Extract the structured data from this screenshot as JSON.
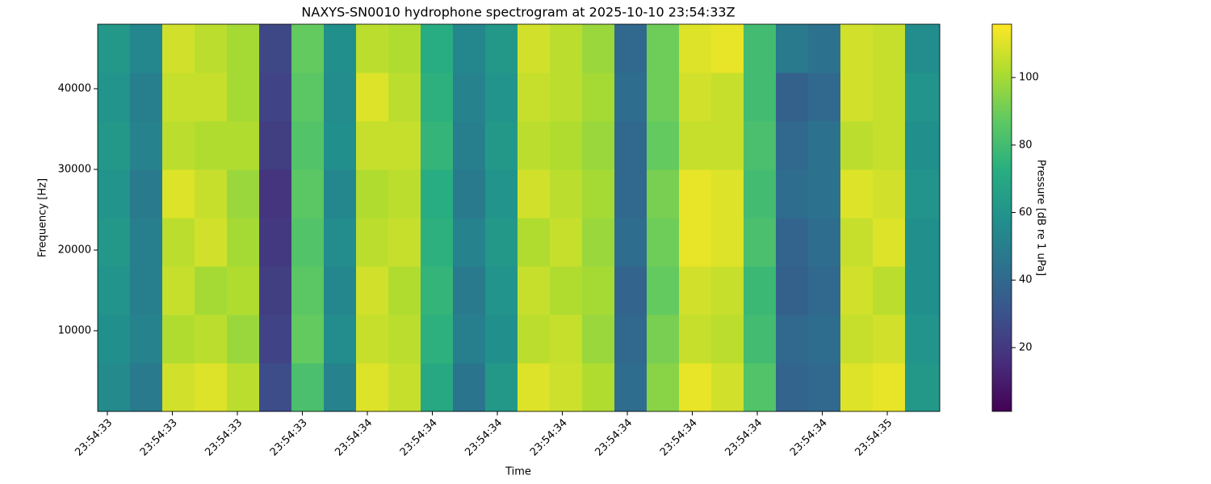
{
  "chart_data": {
    "type": "heatmap",
    "title": "NAXYS-SN0010 hydrophone spectrogram at 2025-10-10 23:54:33Z",
    "xlabel": "Time",
    "ylabel": "Frequency [Hz]",
    "colorbar_label": "Pressure [dB re 1 uPa]",
    "colormap": "viridis",
    "x": [
      33.5314,
      33.5935,
      33.6556,
      33.7177,
      33.7798,
      33.842,
      33.9041,
      33.9662,
      34.0283,
      34.0904,
      34.1525,
      34.2146,
      34.2767,
      34.3388,
      34.4009,
      34.4631,
      34.5252,
      34.5873,
      34.6494,
      34.7115,
      34.7736,
      34.8357,
      34.8978,
      34.9599,
      35.022,
      35.0841,
      35.1509
    ],
    "y": [
      0,
      6000,
      12000,
      18000,
      24000,
      30000,
      36000,
      42000,
      48000
    ],
    "values": [
      [
        55,
        48,
        108,
        110,
        104,
        28,
        82,
        52,
        110,
        106,
        70,
        45,
        62,
        110,
        107,
        102,
        42,
        95,
        112,
        108,
        84,
        38,
        40,
        110,
        112,
        62
      ],
      [
        58,
        52,
        102,
        104,
        98,
        24,
        88,
        56,
        106,
        104,
        74,
        50,
        58,
        104,
        106,
        98,
        40,
        92,
        106,
        104,
        80,
        40,
        42,
        106,
        108,
        60
      ],
      [
        60,
        50,
        106,
        100,
        102,
        22,
        86,
        54,
        108,
        102,
        76,
        48,
        60,
        106,
        102,
        100,
        38,
        88,
        108,
        106,
        78,
        36,
        40,
        108,
        104,
        58
      ],
      [
        62,
        50,
        104,
        108,
        100,
        20,
        84,
        56,
        104,
        106,
        74,
        52,
        62,
        102,
        106,
        98,
        42,
        90,
        112,
        110,
        82,
        38,
        42,
        106,
        110,
        58
      ],
      [
        60,
        48,
        110,
        106,
        98,
        18,
        86,
        54,
        102,
        104,
        72,
        48,
        60,
        108,
        104,
        100,
        40,
        92,
        112,
        110,
        80,
        42,
        44,
        110,
        108,
        60
      ],
      [
        62,
        52,
        104,
        102,
        102,
        22,
        84,
        58,
        106,
        106,
        76,
        50,
        62,
        104,
        102,
        98,
        40,
        88,
        106,
        106,
        82,
        40,
        44,
        104,
        106,
        58
      ],
      [
        60,
        50,
        106,
        106,
        100,
        24,
        86,
        56,
        110,
        104,
        74,
        52,
        60,
        106,
        104,
        100,
        42,
        90,
        108,
        106,
        80,
        36,
        40,
        108,
        106,
        60
      ],
      [
        62,
        54,
        108,
        104,
        100,
        26,
        88,
        58,
        104,
        102,
        72,
        54,
        62,
        108,
        104,
        98,
        40,
        90,
        110,
        112,
        80,
        48,
        44,
        108,
        106,
        56
      ]
    ],
    "xlim": [
      33.5314,
      35.1509
    ],
    "ylim": [
      0,
      48000
    ],
    "xticks": [
      {
        "value": 33.55,
        "label": "23:54:33"
      },
      {
        "value": 33.675,
        "label": "23:54:33"
      },
      {
        "value": 33.8,
        "label": "23:54:33"
      },
      {
        "value": 33.925,
        "label": "23:54:33"
      },
      {
        "value": 34.05,
        "label": "23:54:34"
      },
      {
        "value": 34.175,
        "label": "23:54:34"
      },
      {
        "value": 34.3,
        "label": "23:54:34"
      },
      {
        "value": 34.425,
        "label": "23:54:34"
      },
      {
        "value": 34.55,
        "label": "23:54:34"
      },
      {
        "value": 34.675,
        "label": "23:54:34"
      },
      {
        "value": 34.8,
        "label": "23:54:34"
      },
      {
        "value": 34.925,
        "label": "23:54:34"
      },
      {
        "value": 35.05,
        "label": "23:54:35"
      }
    ],
    "yticks": [
      10000,
      20000,
      30000,
      40000
    ],
    "clim": [
      1.1,
      115.8
    ],
    "cticks": [
      20,
      40,
      60,
      80,
      100
    ]
  }
}
